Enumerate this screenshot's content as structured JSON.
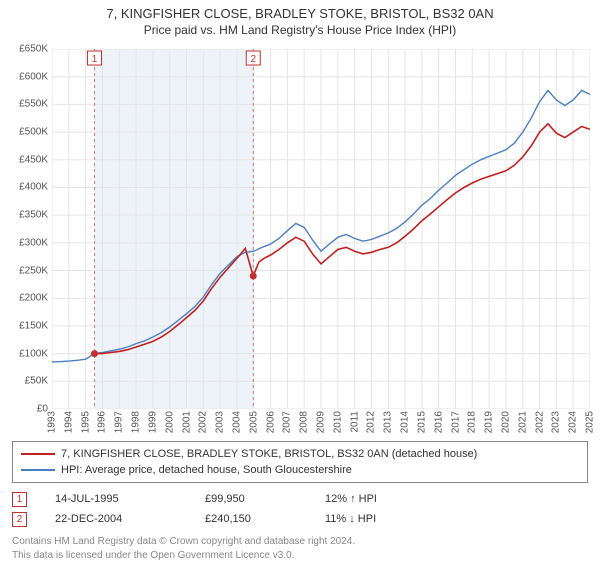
{
  "title": "7, KINGFISHER CLOSE, BRADLEY STOKE, BRISTOL, BS32 0AN",
  "subtitle": "Price paid vs. HM Land Registry's House Price Index (HPI)",
  "chart": {
    "type": "line",
    "background_color": "#ffffff",
    "grid_color": "#e5e5e5",
    "axis_color": "#cccccc",
    "text_color": "#555555",
    "label_fontsize": 10,
    "y": {
      "min": 0,
      "max": 650000,
      "tick_step": 50000,
      "ticks": [
        "£0",
        "£50K",
        "£100K",
        "£150K",
        "£200K",
        "£250K",
        "£300K",
        "£350K",
        "£400K",
        "£450K",
        "£500K",
        "£550K",
        "£600K",
        "£650K"
      ]
    },
    "x": {
      "min": 1993,
      "max": 2025,
      "ticks": [
        1993,
        1994,
        1995,
        1996,
        1997,
        1998,
        1999,
        2000,
        2001,
        2002,
        2003,
        2004,
        2005,
        2006,
        2007,
        2008,
        2009,
        2010,
        2011,
        2012,
        2013,
        2014,
        2015,
        2016,
        2017,
        2018,
        2019,
        2020,
        2021,
        2022,
        2023,
        2024,
        2025
      ]
    },
    "highlight_band": {
      "x_start": 1995.53,
      "x_end": 2004.97,
      "fill": "#eef3f9",
      "border_color_1": "#d07a7a",
      "border_color_2": "#d07a7a",
      "border_dash": "3,3"
    },
    "markers": [
      {
        "n": 1,
        "x": 1995.53,
        "y": 99950,
        "box_color": "#c23030",
        "fill": "#c23030"
      },
      {
        "n": 2,
        "x": 2004.97,
        "y": 240150,
        "box_color": "#c23030",
        "fill": "#c23030"
      }
    ],
    "series": [
      {
        "name": "property",
        "color": "#c22020",
        "width": 1.6,
        "data": [
          [
            1995.53,
            99950
          ],
          [
            1996.0,
            100000
          ],
          [
            1996.5,
            102000
          ],
          [
            1997.0,
            104000
          ],
          [
            1997.5,
            107000
          ],
          [
            1998.0,
            112000
          ],
          [
            1998.5,
            117000
          ],
          [
            1999.0,
            122000
          ],
          [
            1999.5,
            130000
          ],
          [
            2000.0,
            140000
          ],
          [
            2000.5,
            152000
          ],
          [
            2001.0,
            165000
          ],
          [
            2001.5,
            178000
          ],
          [
            2002.0,
            195000
          ],
          [
            2002.5,
            218000
          ],
          [
            2003.0,
            238000
          ],
          [
            2003.5,
            255000
          ],
          [
            2004.0,
            272000
          ],
          [
            2004.5,
            290000
          ],
          [
            2004.97,
            240150
          ],
          [
            2005.3,
            265000
          ],
          [
            2005.6,
            272000
          ],
          [
            2006.0,
            278000
          ],
          [
            2006.5,
            288000
          ],
          [
            2007.0,
            300000
          ],
          [
            2007.5,
            310000
          ],
          [
            2008.0,
            303000
          ],
          [
            2008.5,
            280000
          ],
          [
            2009.0,
            262000
          ],
          [
            2009.5,
            275000
          ],
          [
            2010.0,
            288000
          ],
          [
            2010.5,
            292000
          ],
          [
            2011.0,
            285000
          ],
          [
            2011.5,
            280000
          ],
          [
            2012.0,
            283000
          ],
          [
            2012.5,
            288000
          ],
          [
            2013.0,
            292000
          ],
          [
            2013.5,
            300000
          ],
          [
            2014.0,
            312000
          ],
          [
            2014.5,
            325000
          ],
          [
            2015.0,
            340000
          ],
          [
            2015.5,
            352000
          ],
          [
            2016.0,
            365000
          ],
          [
            2016.5,
            378000
          ],
          [
            2017.0,
            390000
          ],
          [
            2017.5,
            400000
          ],
          [
            2018.0,
            408000
          ],
          [
            2018.5,
            415000
          ],
          [
            2019.0,
            420000
          ],
          [
            2019.5,
            425000
          ],
          [
            2020.0,
            430000
          ],
          [
            2020.5,
            440000
          ],
          [
            2021.0,
            455000
          ],
          [
            2021.5,
            475000
          ],
          [
            2022.0,
            500000
          ],
          [
            2022.5,
            515000
          ],
          [
            2023.0,
            498000
          ],
          [
            2023.5,
            490000
          ],
          [
            2024.0,
            500000
          ],
          [
            2024.5,
            510000
          ],
          [
            2025.0,
            505000
          ]
        ]
      },
      {
        "name": "hpi",
        "color": "#4b7fc4",
        "width": 1.4,
        "data": [
          [
            1993.0,
            85000
          ],
          [
            1993.5,
            85500
          ],
          [
            1994.0,
            86500
          ],
          [
            1994.5,
            88000
          ],
          [
            1995.0,
            90000
          ],
          [
            1995.53,
            99950
          ],
          [
            1996.0,
            102000
          ],
          [
            1996.5,
            105000
          ],
          [
            1997.0,
            108000
          ],
          [
            1997.5,
            112000
          ],
          [
            1998.0,
            118000
          ],
          [
            1998.5,
            123000
          ],
          [
            1999.0,
            130000
          ],
          [
            1999.5,
            138000
          ],
          [
            2000.0,
            148000
          ],
          [
            2000.5,
            160000
          ],
          [
            2001.0,
            172000
          ],
          [
            2001.5,
            185000
          ],
          [
            2002.0,
            202000
          ],
          [
            2002.5,
            225000
          ],
          [
            2003.0,
            245000
          ],
          [
            2003.5,
            260000
          ],
          [
            2004.0,
            275000
          ],
          [
            2004.5,
            283000
          ],
          [
            2005.0,
            285000
          ],
          [
            2005.5,
            292000
          ],
          [
            2006.0,
            298000
          ],
          [
            2006.5,
            308000
          ],
          [
            2007.0,
            322000
          ],
          [
            2007.5,
            335000
          ],
          [
            2008.0,
            328000
          ],
          [
            2008.5,
            305000
          ],
          [
            2009.0,
            285000
          ],
          [
            2009.5,
            298000
          ],
          [
            2010.0,
            310000
          ],
          [
            2010.5,
            315000
          ],
          [
            2011.0,
            308000
          ],
          [
            2011.5,
            303000
          ],
          [
            2012.0,
            306000
          ],
          [
            2012.5,
            312000
          ],
          [
            2013.0,
            318000
          ],
          [
            2013.5,
            326000
          ],
          [
            2014.0,
            338000
          ],
          [
            2014.5,
            352000
          ],
          [
            2015.0,
            368000
          ],
          [
            2015.5,
            380000
          ],
          [
            2016.0,
            395000
          ],
          [
            2016.5,
            408000
          ],
          [
            2017.0,
            422000
          ],
          [
            2017.5,
            432000
          ],
          [
            2018.0,
            442000
          ],
          [
            2018.5,
            450000
          ],
          [
            2019.0,
            456000
          ],
          [
            2019.5,
            462000
          ],
          [
            2020.0,
            468000
          ],
          [
            2020.5,
            480000
          ],
          [
            2021.0,
            500000
          ],
          [
            2021.5,
            525000
          ],
          [
            2022.0,
            555000
          ],
          [
            2022.5,
            575000
          ],
          [
            2023.0,
            558000
          ],
          [
            2023.5,
            548000
          ],
          [
            2024.0,
            558000
          ],
          [
            2024.5,
            575000
          ],
          [
            2025.0,
            568000
          ]
        ]
      }
    ]
  },
  "legend": {
    "items": [
      {
        "color": "#c22020",
        "label": "7, KINGFISHER CLOSE, BRADLEY STOKE, BRISTOL, BS32 0AN (detached house)"
      },
      {
        "color": "#4b7fc4",
        "label": "HPI: Average price, detached house, South Gloucestershire"
      }
    ]
  },
  "notes": [
    {
      "n": "1",
      "color": "#c23030",
      "date": "14-JUL-1995",
      "price": "£99,950",
      "delta": "12% ↑ HPI"
    },
    {
      "n": "2",
      "color": "#c23030",
      "date": "22-DEC-2004",
      "price": "£240,150",
      "delta": "11% ↓ HPI"
    }
  ],
  "footer": {
    "line1": "Contains HM Land Registry data © Crown copyright and database right 2024.",
    "line2": "This data is licensed under the Open Government Licence v3.0."
  }
}
